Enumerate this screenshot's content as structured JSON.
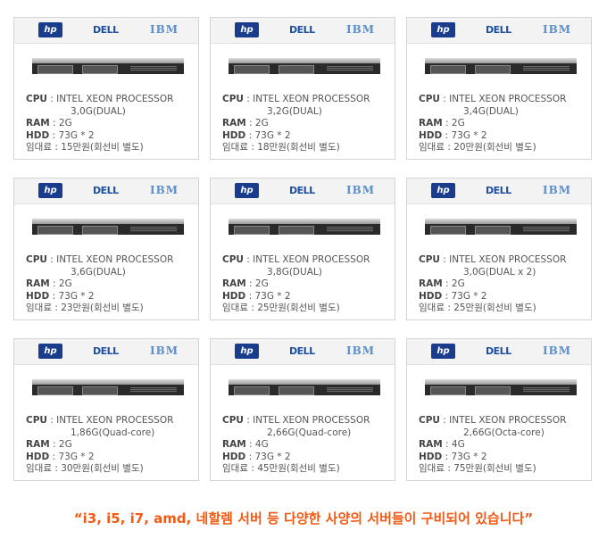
{
  "brands": {
    "hp": "hp",
    "dell": "DELL",
    "ibm": "IBM"
  },
  "labels": {
    "cpu": "CPU",
    "ram": "RAM",
    "hdd": "HDD",
    "sep": " : "
  },
  "servers": [
    {
      "cpu": "INTEL XEON PROCESSOR",
      "cpu2": "3,0G(DUAL)",
      "ram": "2G",
      "hdd": "73G * 2",
      "price": "임대료 : 15만원(회선비 별도)"
    },
    {
      "cpu": "INTEL XEON PROCESSOR",
      "cpu2": "3,2G(DUAL)",
      "ram": "2G",
      "hdd": "73G * 2",
      "price": "임대료 : 18만원(회선비 별도)"
    },
    {
      "cpu": "INTEL XEON PROCESSOR",
      "cpu2": "3,4G(DUAL)",
      "ram": "2G",
      "hdd": "73G * 2",
      "price": "임대료 : 20만원(회선비 별도)"
    },
    {
      "cpu": "INTEL XEON PROCESSOR",
      "cpu2": "3,6G(DUAL)",
      "ram": "2G",
      "hdd": "73G * 2",
      "price": "임대료 : 23만원(회선비 별도)"
    },
    {
      "cpu": "INTEL XEON PROCESSOR",
      "cpu2": "3,8G(DUAL)",
      "ram": "2G",
      "hdd": "73G * 2",
      "price": "임대료 : 25만원(회선비 별도)"
    },
    {
      "cpu": "INTEL XEON PROCESSOR",
      "cpu2": "3,0G(DUAL x 2)",
      "ram": "2G",
      "hdd": "73G * 2",
      "price": "임대료 : 25만원(회선비 별도)"
    },
    {
      "cpu": "INTEL XEON PROCESSOR",
      "cpu2": "1,86G(Quad-core)",
      "ram": "2G",
      "hdd": "73G * 2",
      "price": "임대료 : 30만원(회선비 별도)"
    },
    {
      "cpu": "INTEL XEON PROCESSOR",
      "cpu2": "2,66G(Quad-core)",
      "ram": "4G",
      "hdd": "73G * 2",
      "price": "임대료 : 45만원(회선비 별도)"
    },
    {
      "cpu": "INTEL XEON PROCESSOR",
      "cpu2": "2,66G(Octa-core)",
      "ram": "4G",
      "hdd": "73G * 2",
      "price": "임대료 : 75만원(회선비 별도)"
    }
  ],
  "note": "“i3, i5, i7, amd, 네할렘 서버 등 다양한 사양의 서버들이 구비되어 있습니다”",
  "colors": {
    "accent": "#f05a14",
    "hp": "#1a3c8c",
    "dell": "#1d4fa0"
  }
}
